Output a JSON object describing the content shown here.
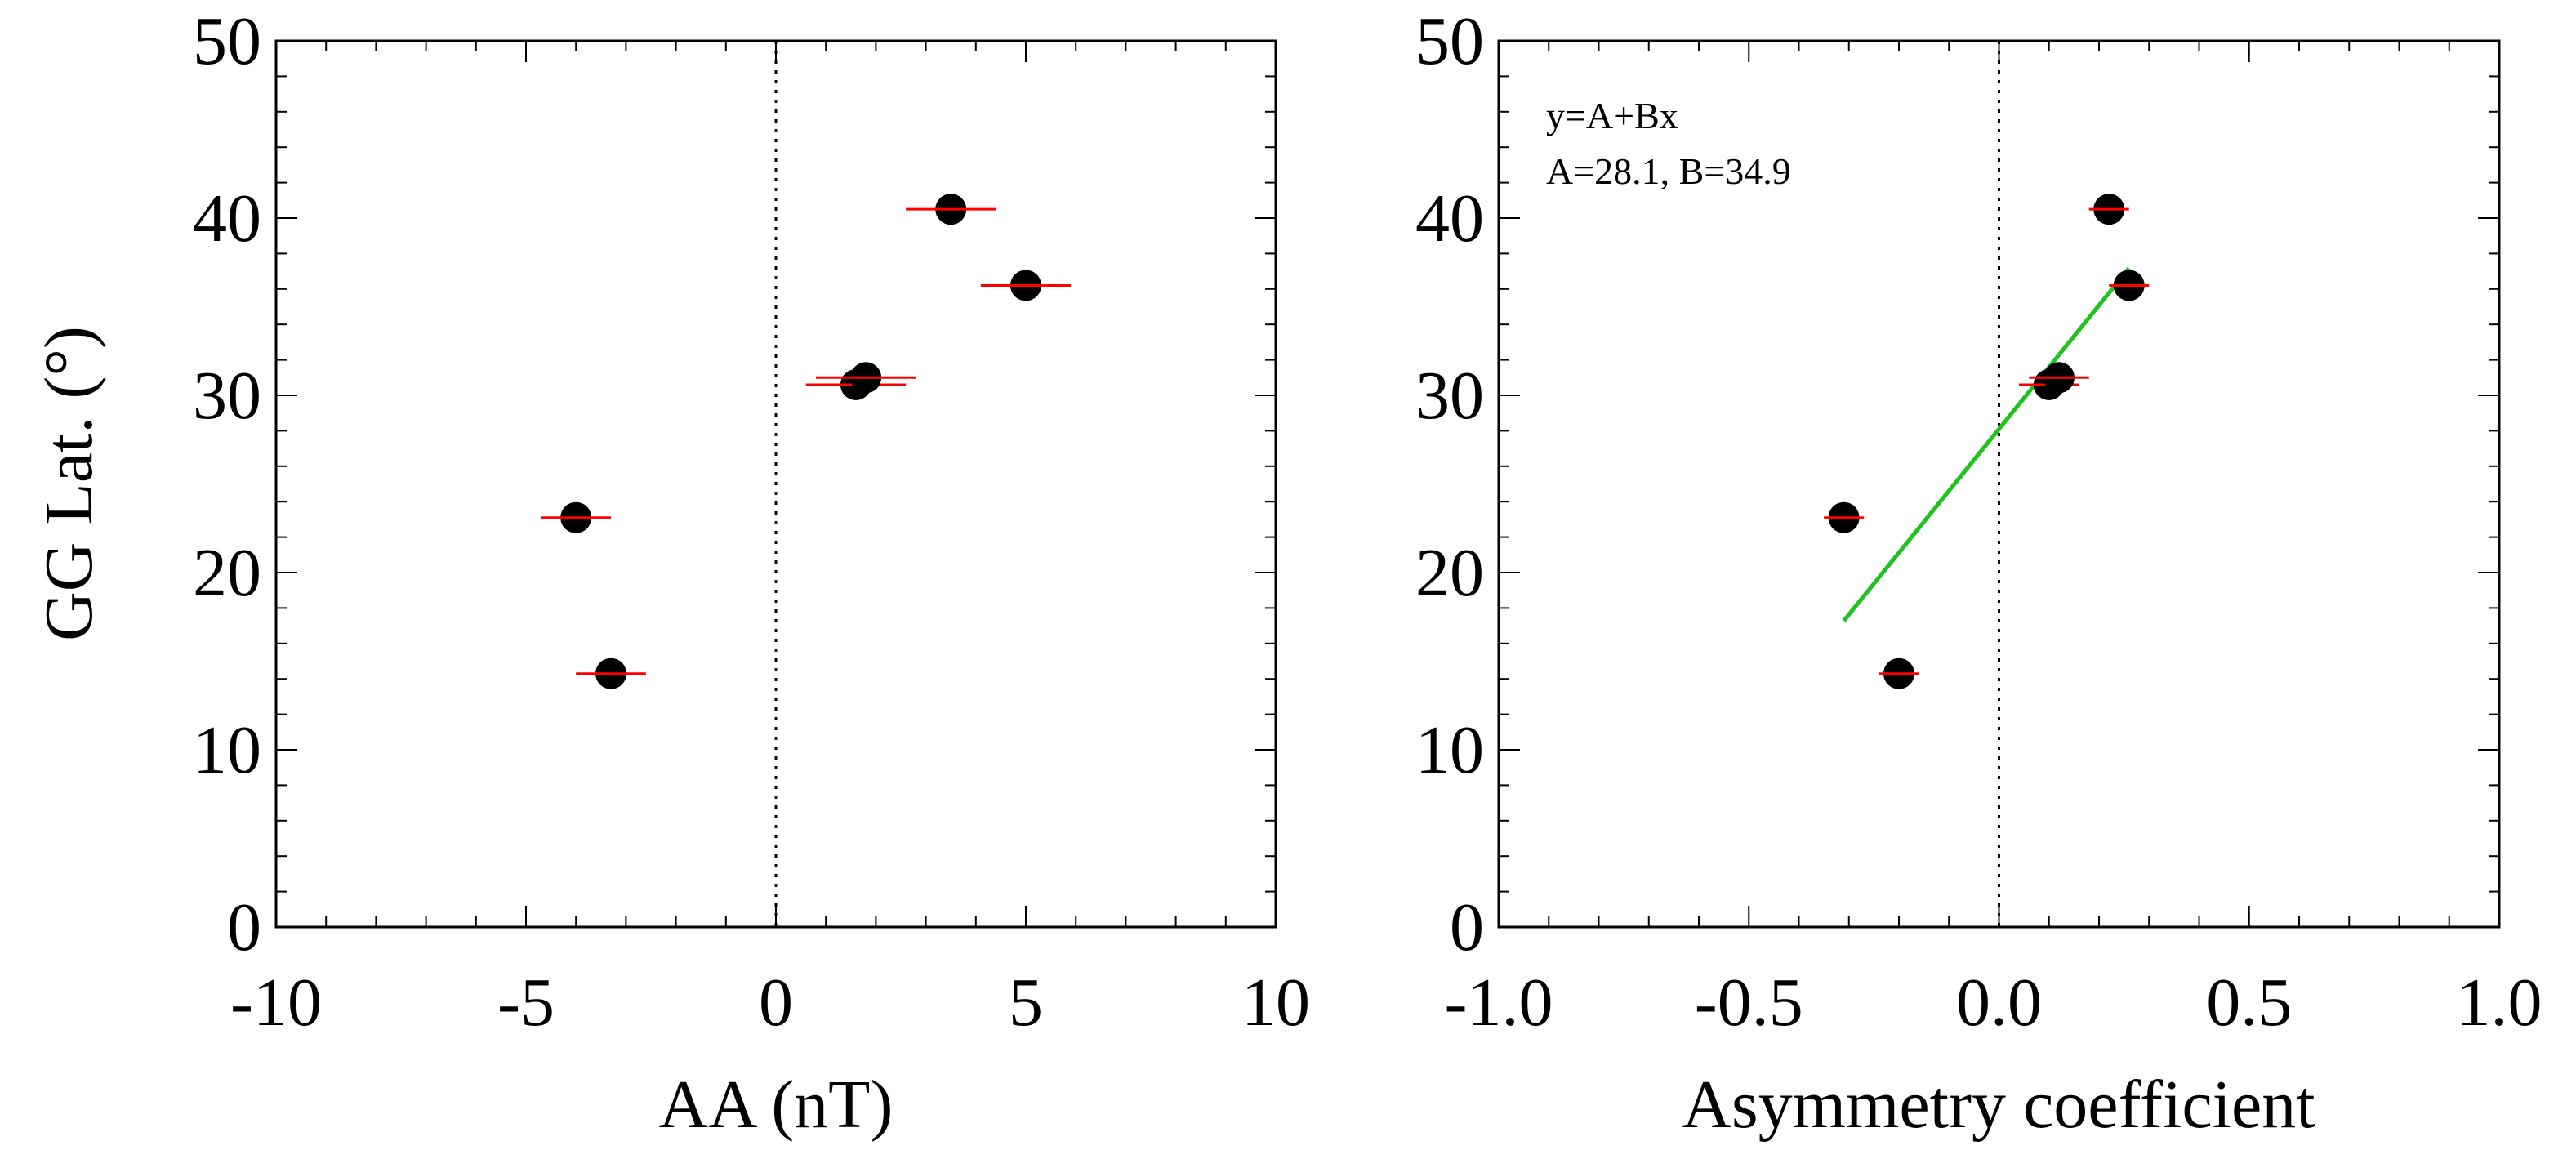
{
  "chart_data": [
    {
      "type": "scatter",
      "panel": "left",
      "xlabel": "AA (nT)",
      "ylabel": "GG Lat. (°)",
      "xlim": [
        -10,
        10
      ],
      "ylim": [
        0,
        50
      ],
      "xticks": [
        "-10",
        "-5",
        "0",
        "5",
        "10"
      ],
      "yticks": [
        "0",
        "10",
        "20",
        "30",
        "40",
        "50"
      ],
      "zero_line": true,
      "points": [
        {
          "x": -4.0,
          "y": 23.1,
          "xerr": 0.7
        },
        {
          "x": -3.3,
          "y": 14.3,
          "xerr": 0.7
        },
        {
          "x": 1.6,
          "y": 30.6,
          "xerr": 1.0
        },
        {
          "x": 1.8,
          "y": 31.0,
          "xerr": 1.0
        },
        {
          "x": 3.5,
          "y": 40.5,
          "xerr": 0.9
        },
        {
          "x": 5.0,
          "y": 36.2,
          "xerr": 0.9
        }
      ]
    },
    {
      "type": "scatter",
      "panel": "right",
      "xlabel": "Asymmetry coefficient",
      "ylabel": "",
      "xlim": [
        -1.0,
        1.0
      ],
      "ylim": [
        0,
        50
      ],
      "xticks": [
        "-1.0",
        "-0.5",
        "0.0",
        "0.5",
        "1.0"
      ],
      "yticks": [
        "0",
        "10",
        "20",
        "30",
        "40",
        "50"
      ],
      "zero_line": true,
      "points": [
        {
          "x": -0.31,
          "y": 23.1,
          "xerr": 0.04
        },
        {
          "x": -0.2,
          "y": 14.3,
          "xerr": 0.04
        },
        {
          "x": 0.1,
          "y": 30.6,
          "xerr": 0.06
        },
        {
          "x": 0.12,
          "y": 31.0,
          "xerr": 0.06
        },
        {
          "x": 0.22,
          "y": 40.5,
          "xerr": 0.04
        },
        {
          "x": 0.26,
          "y": 36.2,
          "xerr": 0.04
        }
      ],
      "fit": {
        "x_start": -0.31,
        "x_end": 0.26,
        "A": 28.1,
        "B": 34.9,
        "color": "#1ec31e"
      },
      "annotation": [
        "y=A+Bx",
        "A=28.1,  B=34.9"
      ]
    }
  ],
  "colors": {
    "errorbar": "#ff0000",
    "marker": "#000000",
    "fit": "#1ec31e"
  }
}
